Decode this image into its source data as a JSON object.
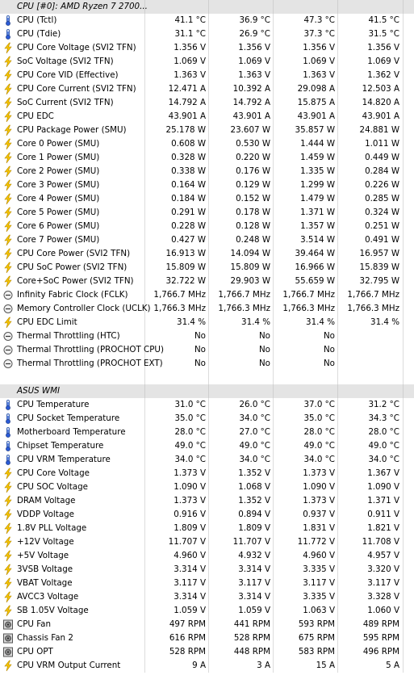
{
  "sections": [
    {
      "title": "CPU [#0]: AMD Ryzen 7 2700...",
      "rows": [
        {
          "icon": "thermometer-icon",
          "label": "CPU (Tctl)",
          "values": [
            "41.1 °C",
            "36.9 °C",
            "47.3 °C",
            "41.5 °C"
          ]
        },
        {
          "icon": "thermometer-icon",
          "label": "CPU (Tdie)",
          "values": [
            "31.1 °C",
            "26.9 °C",
            "37.3 °C",
            "31.5 °C"
          ]
        },
        {
          "icon": "lightning-icon",
          "label": "CPU Core Voltage (SVI2 TFN)",
          "values": [
            "1.356 V",
            "1.356 V",
            "1.356 V",
            "1.356 V"
          ]
        },
        {
          "icon": "lightning-icon",
          "label": "SoC Voltage (SVI2 TFN)",
          "values": [
            "1.069 V",
            "1.069 V",
            "1.069 V",
            "1.069 V"
          ]
        },
        {
          "icon": "lightning-icon",
          "label": "CPU Core VID (Effective)",
          "values": [
            "1.363 V",
            "1.363 V",
            "1.363 V",
            "1.362 V"
          ]
        },
        {
          "icon": "lightning-icon",
          "label": "CPU Core Current (SVI2 TFN)",
          "values": [
            "12.471 A",
            "10.392 A",
            "29.098 A",
            "12.503 A"
          ]
        },
        {
          "icon": "lightning-icon",
          "label": "SoC Current (SVI2 TFN)",
          "values": [
            "14.792 A",
            "14.792 A",
            "15.875 A",
            "14.820 A"
          ]
        },
        {
          "icon": "lightning-icon",
          "label": "CPU EDC",
          "values": [
            "43.901 A",
            "43.901 A",
            "43.901 A",
            "43.901 A"
          ]
        },
        {
          "icon": "lightning-icon",
          "label": "CPU Package Power (SMU)",
          "values": [
            "25.178 W",
            "23.607 W",
            "35.857 W",
            "24.881 W"
          ]
        },
        {
          "icon": "lightning-icon",
          "label": "Core 0 Power (SMU)",
          "values": [
            "0.608 W",
            "0.530 W",
            "1.444 W",
            "1.011 W"
          ]
        },
        {
          "icon": "lightning-icon",
          "label": "Core 1 Power (SMU)",
          "values": [
            "0.328 W",
            "0.220 W",
            "1.459 W",
            "0.449 W"
          ]
        },
        {
          "icon": "lightning-icon",
          "label": "Core 2 Power (SMU)",
          "values": [
            "0.338 W",
            "0.176 W",
            "1.335 W",
            "0.284 W"
          ]
        },
        {
          "icon": "lightning-icon",
          "label": "Core 3 Power (SMU)",
          "values": [
            "0.164 W",
            "0.129 W",
            "1.299 W",
            "0.226 W"
          ]
        },
        {
          "icon": "lightning-icon",
          "label": "Core 4 Power (SMU)",
          "values": [
            "0.184 W",
            "0.152 W",
            "1.479 W",
            "0.285 W"
          ]
        },
        {
          "icon": "lightning-icon",
          "label": "Core 5 Power (SMU)",
          "values": [
            "0.291 W",
            "0.178 W",
            "1.371 W",
            "0.324 W"
          ]
        },
        {
          "icon": "lightning-icon",
          "label": "Core 6 Power (SMU)",
          "values": [
            "0.228 W",
            "0.128 W",
            "1.357 W",
            "0.251 W"
          ]
        },
        {
          "icon": "lightning-icon",
          "label": "Core 7 Power (SMU)",
          "values": [
            "0.427 W",
            "0.248 W",
            "3.514 W",
            "0.491 W"
          ]
        },
        {
          "icon": "lightning-icon",
          "label": "CPU Core Power (SVI2 TFN)",
          "values": [
            "16.913 W",
            "14.094 W",
            "39.464 W",
            "16.957 W"
          ]
        },
        {
          "icon": "lightning-icon",
          "label": "CPU SoC Power (SVI2 TFN)",
          "values": [
            "15.809 W",
            "15.809 W",
            "16.966 W",
            "15.839 W"
          ]
        },
        {
          "icon": "lightning-icon",
          "label": "Core+SoC Power (SVI2 TFN)",
          "values": [
            "32.722 W",
            "29.903 W",
            "55.659 W",
            "32.795 W"
          ]
        },
        {
          "icon": "clock-icon",
          "label": "Infinity Fabric Clock (FCLK)",
          "values": [
            "1,766.7 MHz",
            "1,766.7 MHz",
            "1,766.7 MHz",
            "1,766.7 MHz"
          ]
        },
        {
          "icon": "clock-icon",
          "label": "Memory Controller Clock (UCLK)",
          "values": [
            "1,766.3 MHz",
            "1,766.3 MHz",
            "1,766.3 MHz",
            "1,766.3 MHz"
          ]
        },
        {
          "icon": "lightning-icon",
          "label": "CPU EDC Limit",
          "values": [
            "31.4 %",
            "31.4 %",
            "31.4 %",
            "31.4 %"
          ]
        },
        {
          "icon": "clock-icon",
          "label": "Thermal Throttling (HTC)",
          "values": [
            "No",
            "No",
            "No",
            ""
          ]
        },
        {
          "icon": "clock-icon",
          "label": "Thermal Throttling (PROCHOT CPU)",
          "values": [
            "No",
            "No",
            "No",
            ""
          ]
        },
        {
          "icon": "clock-icon",
          "label": "Thermal Throttling (PROCHOT EXT)",
          "values": [
            "No",
            "No",
            "No",
            ""
          ]
        }
      ]
    },
    {
      "title": "ASUS WMI",
      "rows": [
        {
          "icon": "thermometer-icon",
          "label": "CPU Temperature",
          "values": [
            "31.0 °C",
            "26.0 °C",
            "37.0 °C",
            "31.2 °C"
          ]
        },
        {
          "icon": "thermometer-icon",
          "label": "CPU Socket Temperature",
          "values": [
            "35.0 °C",
            "34.0 °C",
            "35.0 °C",
            "34.3 °C"
          ]
        },
        {
          "icon": "thermometer-icon",
          "label": "Motherboard Temperature",
          "values": [
            "28.0 °C",
            "27.0 °C",
            "28.0 °C",
            "28.0 °C"
          ]
        },
        {
          "icon": "thermometer-icon",
          "label": "Chipset Temperature",
          "values": [
            "49.0 °C",
            "49.0 °C",
            "49.0 °C",
            "49.0 °C"
          ]
        },
        {
          "icon": "thermometer-icon",
          "label": "CPU VRM Temperature",
          "values": [
            "34.0 °C",
            "34.0 °C",
            "34.0 °C",
            "34.0 °C"
          ]
        },
        {
          "icon": "lightning-icon",
          "label": "CPU Core Voltage",
          "values": [
            "1.373 V",
            "1.352 V",
            "1.373 V",
            "1.367 V"
          ]
        },
        {
          "icon": "lightning-icon",
          "label": "CPU SOC Voltage",
          "values": [
            "1.090 V",
            "1.068 V",
            "1.090 V",
            "1.090 V"
          ]
        },
        {
          "icon": "lightning-icon",
          "label": "DRAM Voltage",
          "values": [
            "1.373 V",
            "1.352 V",
            "1.373 V",
            "1.371 V"
          ]
        },
        {
          "icon": "lightning-icon",
          "label": "VDDP Voltage",
          "values": [
            "0.916 V",
            "0.894 V",
            "0.937 V",
            "0.911 V"
          ]
        },
        {
          "icon": "lightning-icon",
          "label": "1.8V PLL Voltage",
          "values": [
            "1.809 V",
            "1.809 V",
            "1.831 V",
            "1.821 V"
          ]
        },
        {
          "icon": "lightning-icon",
          "label": "+12V Voltage",
          "values": [
            "11.707 V",
            "11.707 V",
            "11.772 V",
            "11.708 V"
          ]
        },
        {
          "icon": "lightning-icon",
          "label": "+5V Voltage",
          "values": [
            "4.960 V",
            "4.932 V",
            "4.960 V",
            "4.957 V"
          ]
        },
        {
          "icon": "lightning-icon",
          "label": "3VSB Voltage",
          "values": [
            "3.314 V",
            "3.314 V",
            "3.335 V",
            "3.320 V"
          ]
        },
        {
          "icon": "lightning-icon",
          "label": "VBAT Voltage",
          "values": [
            "3.117 V",
            "3.117 V",
            "3.117 V",
            "3.117 V"
          ]
        },
        {
          "icon": "lightning-icon",
          "label": "AVCC3 Voltage",
          "values": [
            "3.314 V",
            "3.314 V",
            "3.335 V",
            "3.328 V"
          ]
        },
        {
          "icon": "lightning-icon",
          "label": "SB 1.05V Voltage",
          "values": [
            "1.059 V",
            "1.059 V",
            "1.063 V",
            "1.060 V"
          ]
        },
        {
          "icon": "fan-icon",
          "label": "CPU Fan",
          "values": [
            "497 RPM",
            "441 RPM",
            "593 RPM",
            "489 RPM"
          ]
        },
        {
          "icon": "fan-icon",
          "label": "Chassis Fan 2",
          "values": [
            "616 RPM",
            "528 RPM",
            "675 RPM",
            "595 RPM"
          ]
        },
        {
          "icon": "fan-icon",
          "label": "CPU OPT",
          "values": [
            "528 RPM",
            "448 RPM",
            "583 RPM",
            "496 RPM"
          ]
        },
        {
          "icon": "lightning-icon",
          "label": "CPU VRM Output Current",
          "values": [
            "9 A",
            "3 A",
            "15 A",
            "5 A"
          ]
        }
      ]
    }
  ]
}
